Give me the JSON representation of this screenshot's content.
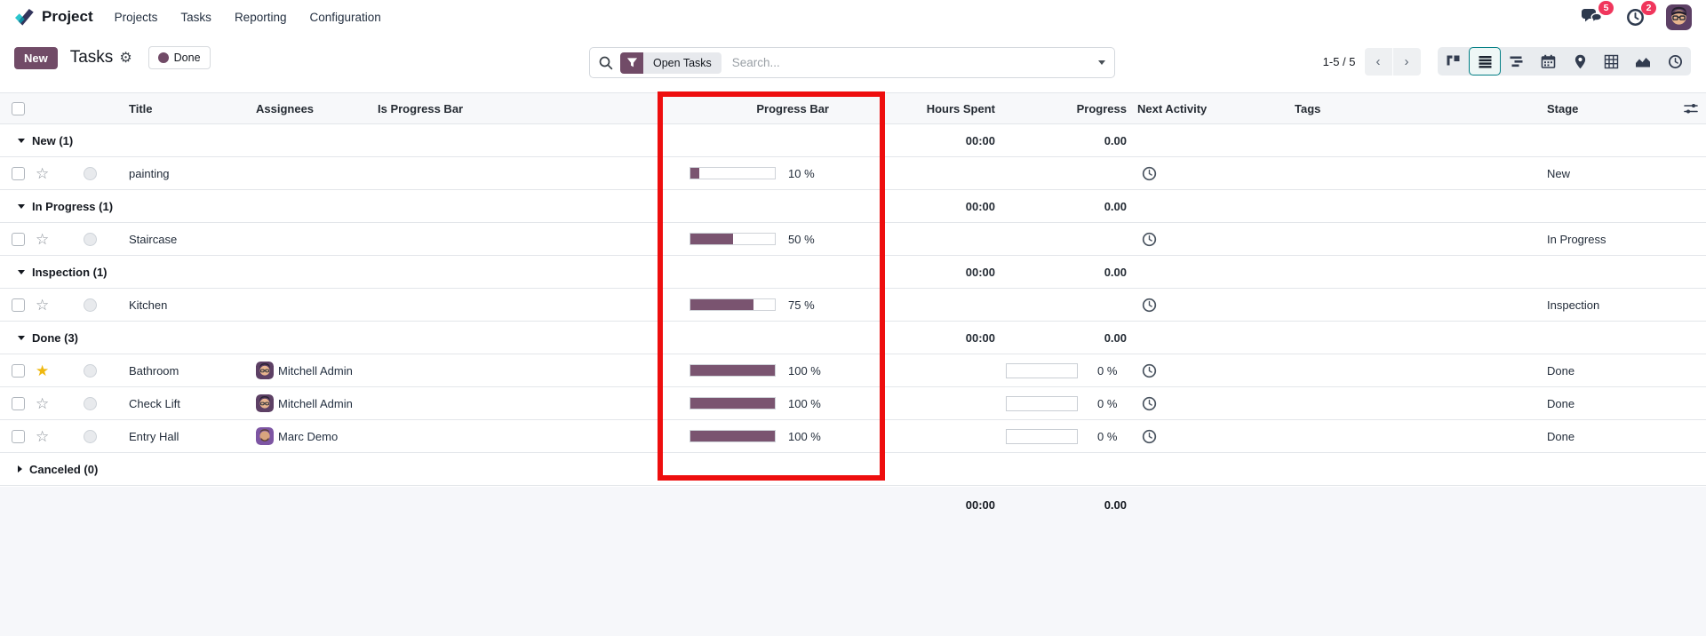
{
  "nav": {
    "brand": "Project",
    "menus": [
      "Projects",
      "Tasks",
      "Reporting",
      "Configuration"
    ],
    "messages_badge": "5",
    "activities_badge": "2"
  },
  "control": {
    "new_label": "New",
    "title": "Tasks",
    "filter_chip": "Done",
    "facet_label": "Open Tasks",
    "search_placeholder": "Search...",
    "pager": "1-5 / 5"
  },
  "view_switcher": [
    "kanban",
    "list",
    "gantt",
    "calendar",
    "map",
    "pivot",
    "graph",
    "activity"
  ],
  "active_view": "list",
  "table": {
    "columns": [
      "Title",
      "Assignees",
      "Is Progress Bar",
      "Progress Bar",
      "Hours Spent",
      "Progress",
      "Next Activity",
      "Tags",
      "Stage"
    ],
    "rows": [
      {
        "type": "group",
        "label": "New (1)",
        "hours": "00:00",
        "progress": "0.00",
        "collapsed": false
      },
      {
        "type": "task",
        "title": "painting",
        "assignee": "",
        "avatar": "",
        "bar": 10,
        "bar_label": "10 %",
        "gauge_label": "",
        "stage": "New",
        "starred": false
      },
      {
        "type": "group",
        "label": "In Progress (1)",
        "hours": "00:00",
        "progress": "0.00",
        "collapsed": false
      },
      {
        "type": "task",
        "title": "Staircase",
        "assignee": "",
        "avatar": "",
        "bar": 50,
        "bar_label": "50 %",
        "gauge_label": "",
        "stage": "In Progress",
        "starred": false
      },
      {
        "type": "group",
        "label": "Inspection (1)",
        "hours": "00:00",
        "progress": "0.00",
        "collapsed": false
      },
      {
        "type": "task",
        "title": "Kitchen",
        "assignee": "",
        "avatar": "",
        "bar": 75,
        "bar_label": "75 %",
        "gauge_label": "",
        "stage": "Inspection",
        "starred": false
      },
      {
        "type": "group",
        "label": "Done (3)",
        "hours": "00:00",
        "progress": "0.00",
        "collapsed": false
      },
      {
        "type": "task",
        "title": "Bathroom",
        "assignee": "Mitchell Admin",
        "avatar": "mitchell",
        "bar": 100,
        "bar_label": "100 %",
        "gauge_label": "0 %",
        "stage": "Done",
        "starred": true
      },
      {
        "type": "task",
        "title": "Check Lift",
        "assignee": "Mitchell Admin",
        "avatar": "mitchell",
        "bar": 100,
        "bar_label": "100 %",
        "gauge_label": "0 %",
        "stage": "Done",
        "starred": false
      },
      {
        "type": "task",
        "title": "Entry Hall",
        "assignee": "Marc Demo",
        "avatar": "marc",
        "bar": 100,
        "bar_label": "100 %",
        "gauge_label": "0 %",
        "stage": "Done",
        "starred": false
      },
      {
        "type": "group",
        "label": "Canceled (0)",
        "hours": "",
        "progress": "",
        "collapsed": true
      }
    ],
    "footer": {
      "hours_total": "00:00",
      "progress_total": "0.00"
    }
  },
  "colors": {
    "accent": "#714B67",
    "progress_bar_fill": "#7a5470",
    "annotation_red": "#ee0e0e",
    "badge_red": "#f0365c",
    "active_view_teal": "#017e84",
    "star_gold": "#efb810"
  }
}
